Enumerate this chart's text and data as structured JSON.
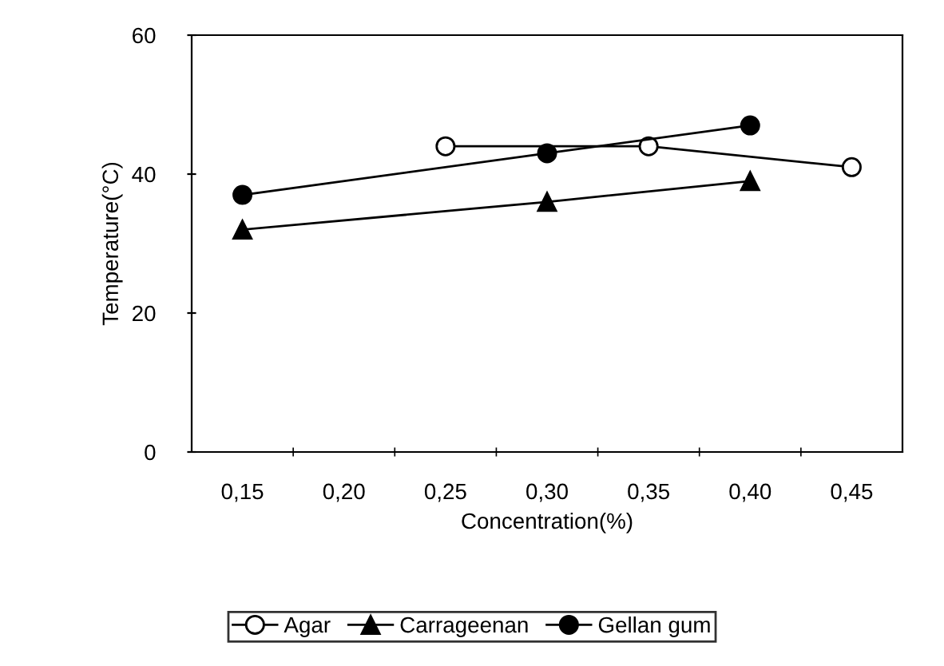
{
  "chart_data": {
    "type": "line",
    "xlabel": "Concentration(%)",
    "ylabel": "Temperature(°C)",
    "categories": [
      "0,15",
      "0,20",
      "0,25",
      "0,30",
      "0,35",
      "0,40",
      "0,45"
    ],
    "ylim": [
      0,
      60
    ],
    "yticks": [
      0,
      20,
      40,
      60
    ],
    "grid": false,
    "legend": "bottom",
    "series": [
      {
        "name": "Agar",
        "color": "#000000",
        "marker": "circle",
        "values": [
          null,
          null,
          44,
          null,
          44,
          null,
          41
        ]
      },
      {
        "name": "Carrageenan",
        "color": "#000000",
        "marker": "triangle",
        "values": [
          32,
          null,
          null,
          36,
          null,
          39,
          null
        ]
      },
      {
        "name": "Gellan gum",
        "color": "#000000",
        "marker": "circle",
        "values": [
          37,
          null,
          null,
          43,
          null,
          47,
          null
        ]
      }
    ]
  }
}
